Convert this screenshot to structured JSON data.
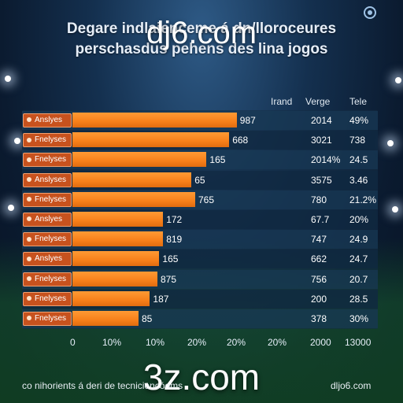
{
  "watermarks": {
    "top": "dj6.com",
    "bottom": "3z.com"
  },
  "footer": {
    "left": "co nihorients á deri de tecniciencóoms",
    "right": "dljo6.com"
  },
  "icon": "settings-icon",
  "colors": {
    "bar": "#f7801a",
    "category_box": "#c7521e",
    "background": "#0b1b30"
  },
  "chart_data": {
    "type": "bar",
    "orientation": "horizontal",
    "title": "Degare indlaienceme á dn/lloroceures",
    "subtitle": "perschasdus pehens des lina jogos",
    "columns": [
      "Irand",
      "Verge",
      "Tele"
    ],
    "categories": [
      "Anslyes",
      "Fnelyses",
      "Fnelyses",
      "Anslyses",
      "Fnelyses",
      "Anslyes",
      "Fnelyses",
      "Anslyes",
      "Fnelyses",
      "Fnelyses",
      "Fnelyses"
    ],
    "values": [
      87,
      83,
      71,
      63,
      65,
      48,
      48,
      46,
      45,
      41,
      35
    ],
    "bar_labels": [
      "987",
      "668",
      "165",
      "65",
      "765",
      "172",
      "819",
      "165",
      "875",
      "187",
      "85"
    ],
    "verge": [
      "2014",
      "3021",
      "2014%",
      "3575",
      "780",
      "67.7",
      "747",
      "662",
      "756",
      "200",
      "378"
    ],
    "tele": [
      "49%",
      "738",
      "24.5",
      "3.46",
      "21.2%",
      "20%",
      "24.9",
      "24.7",
      "20.7",
      "28.5",
      "30%"
    ],
    "x_ticks": [
      "0",
      "10%",
      "10%",
      "20%",
      "20%",
      "20%",
      "2000",
      "13000"
    ],
    "xlim": [
      0,
      100
    ],
    "grid": false,
    "legend": "none"
  }
}
